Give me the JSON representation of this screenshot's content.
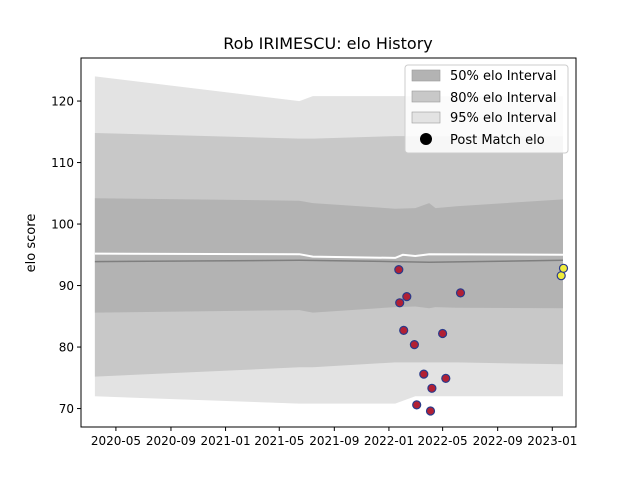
{
  "chart_data": {
    "type": "scatter",
    "title": "Rob IRIMESCU: elo History",
    "xlabel": "",
    "ylabel": "elo score",
    "xlim": [
      "2020-02-13",
      "2023-02-23"
    ],
    "ylim": [
      67,
      127
    ],
    "x_ticks": [
      "2020-05",
      "2020-09",
      "2021-01",
      "2021-05",
      "2021-09",
      "2022-01",
      "2022-05",
      "2022-09",
      "2023-01"
    ],
    "y_ticks": [
      70,
      80,
      90,
      100,
      110,
      120
    ],
    "grid": false,
    "legend_position": "top-right",
    "legend": [
      {
        "label": "50% elo Interval",
        "color": "#b3b3b3",
        "kind": "patch"
      },
      {
        "label": "80% elo Interval",
        "color": "#c8c8c8",
        "kind": "patch"
      },
      {
        "label": "95% elo Interval",
        "color": "#e3e3e3",
        "kind": "patch"
      },
      {
        "label": "Post Match elo",
        "color": "#000000",
        "kind": "marker"
      }
    ],
    "bands": {
      "dates": [
        "2020-03-15",
        "2021-06-15",
        "2021-07-15",
        "2022-01-15",
        "2022-03-01",
        "2022-04-01",
        "2022-04-15",
        "2022-06-01",
        "2023-01-25"
      ],
      "p95_upper": [
        124,
        120,
        120.8,
        120.8,
        120.8,
        120.8,
        120.8,
        120.8,
        120.8
      ],
      "p95_lower": [
        72,
        70.8,
        70.8,
        70.8,
        72,
        72,
        72,
        72,
        72
      ],
      "p80_upper": [
        114.8,
        113.9,
        113.9,
        114.3,
        114.3,
        114.3,
        114.3,
        114.3,
        114.3
      ],
      "p80_lower": [
        75.2,
        76.7,
        76.7,
        77.5,
        77.5,
        77.5,
        77.5,
        77.5,
        77.2
      ],
      "p50_upper": [
        104.2,
        103.8,
        103.4,
        102.5,
        102.6,
        103.4,
        102.6,
        102.9,
        104.0
      ],
      "p50_lower": [
        85.6,
        86.0,
        85.6,
        86.5,
        86.6,
        86.3,
        86.5,
        86.4,
        86.3
      ]
    },
    "series": [
      {
        "name": "Post Match elo",
        "points": [
          {
            "x": "2022-01-23",
            "y": 92.6
          },
          {
            "x": "2022-01-25",
            "y": 87.2
          },
          {
            "x": "2022-02-03",
            "y": 82.7
          },
          {
            "x": "2022-02-10",
            "y": 88.2
          },
          {
            "x": "2022-02-27",
            "y": 80.4
          },
          {
            "x": "2022-03-04",
            "y": 70.6
          },
          {
            "x": "2022-03-20",
            "y": 75.6
          },
          {
            "x": "2022-04-04",
            "y": 69.6
          },
          {
            "x": "2022-04-07",
            "y": 73.3
          },
          {
            "x": "2022-05-01",
            "y": 82.2
          },
          {
            "x": "2022-05-08",
            "y": 74.9
          },
          {
            "x": "2022-06-10",
            "y": 88.8
          }
        ],
        "fill": "#b22034",
        "stroke": "#2a3a8a"
      },
      {
        "name": "Post Match elo (latest)",
        "points": [
          {
            "x": "2023-01-21",
            "y": 91.6
          },
          {
            "x": "2023-01-26",
            "y": 92.8
          }
        ],
        "fill": "#f0ec3c",
        "stroke": "#2a3a8a"
      }
    ],
    "mean_line": {
      "dates": [
        "2020-03-15",
        "2021-06-15",
        "2022-01-15",
        "2022-04-01",
        "2023-01-25"
      ],
      "values": [
        93.9,
        94.1,
        93.9,
        93.8,
        94.1
      ]
    },
    "upper_line": {
      "dates": [
        "2020-03-15",
        "2021-06-15",
        "2021-07-15",
        "2022-01-15",
        "2022-02-01",
        "2022-03-01",
        "2022-04-01",
        "2023-01-25"
      ],
      "values": [
        95.2,
        95.1,
        94.7,
        94.5,
        95.0,
        94.8,
        95.1,
        95.0
      ]
    }
  }
}
